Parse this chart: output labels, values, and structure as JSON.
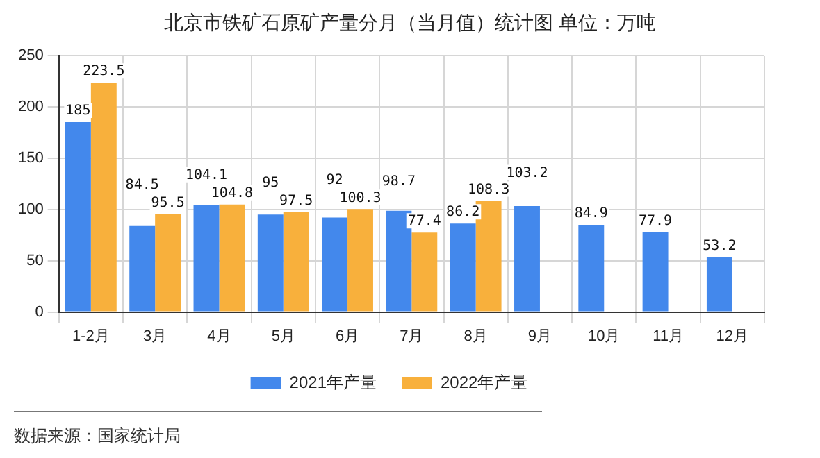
{
  "chart_data": {
    "type": "bar",
    "title": "北京市铁矿石原矿产量分月（当月值）统计图 单位：万吨",
    "categories": [
      "1-2月",
      "3月",
      "4月",
      "5月",
      "6月",
      "7月",
      "8月",
      "9月",
      "10月",
      "11月",
      "12月"
    ],
    "series": [
      {
        "name": "2021年产量",
        "color": "#4388ec",
        "values": [
          185,
          84.5,
          104.1,
          95,
          92,
          98.7,
          86.2,
          103.2,
          84.9,
          77.9,
          53.2
        ]
      },
      {
        "name": "2022年产量",
        "color": "#f8b03c",
        "values": [
          223.5,
          95.5,
          104.8,
          97.5,
          100.3,
          77.4,
          108.3,
          null,
          null,
          null,
          null
        ]
      }
    ],
    "ylim": [
      0,
      250
    ],
    "yticks": [
      0,
      50,
      100,
      150,
      200,
      250
    ],
    "grid": true,
    "legend": "bottom",
    "data_labels": true,
    "annotations": [
      "数据来源：国家统计局"
    ]
  }
}
